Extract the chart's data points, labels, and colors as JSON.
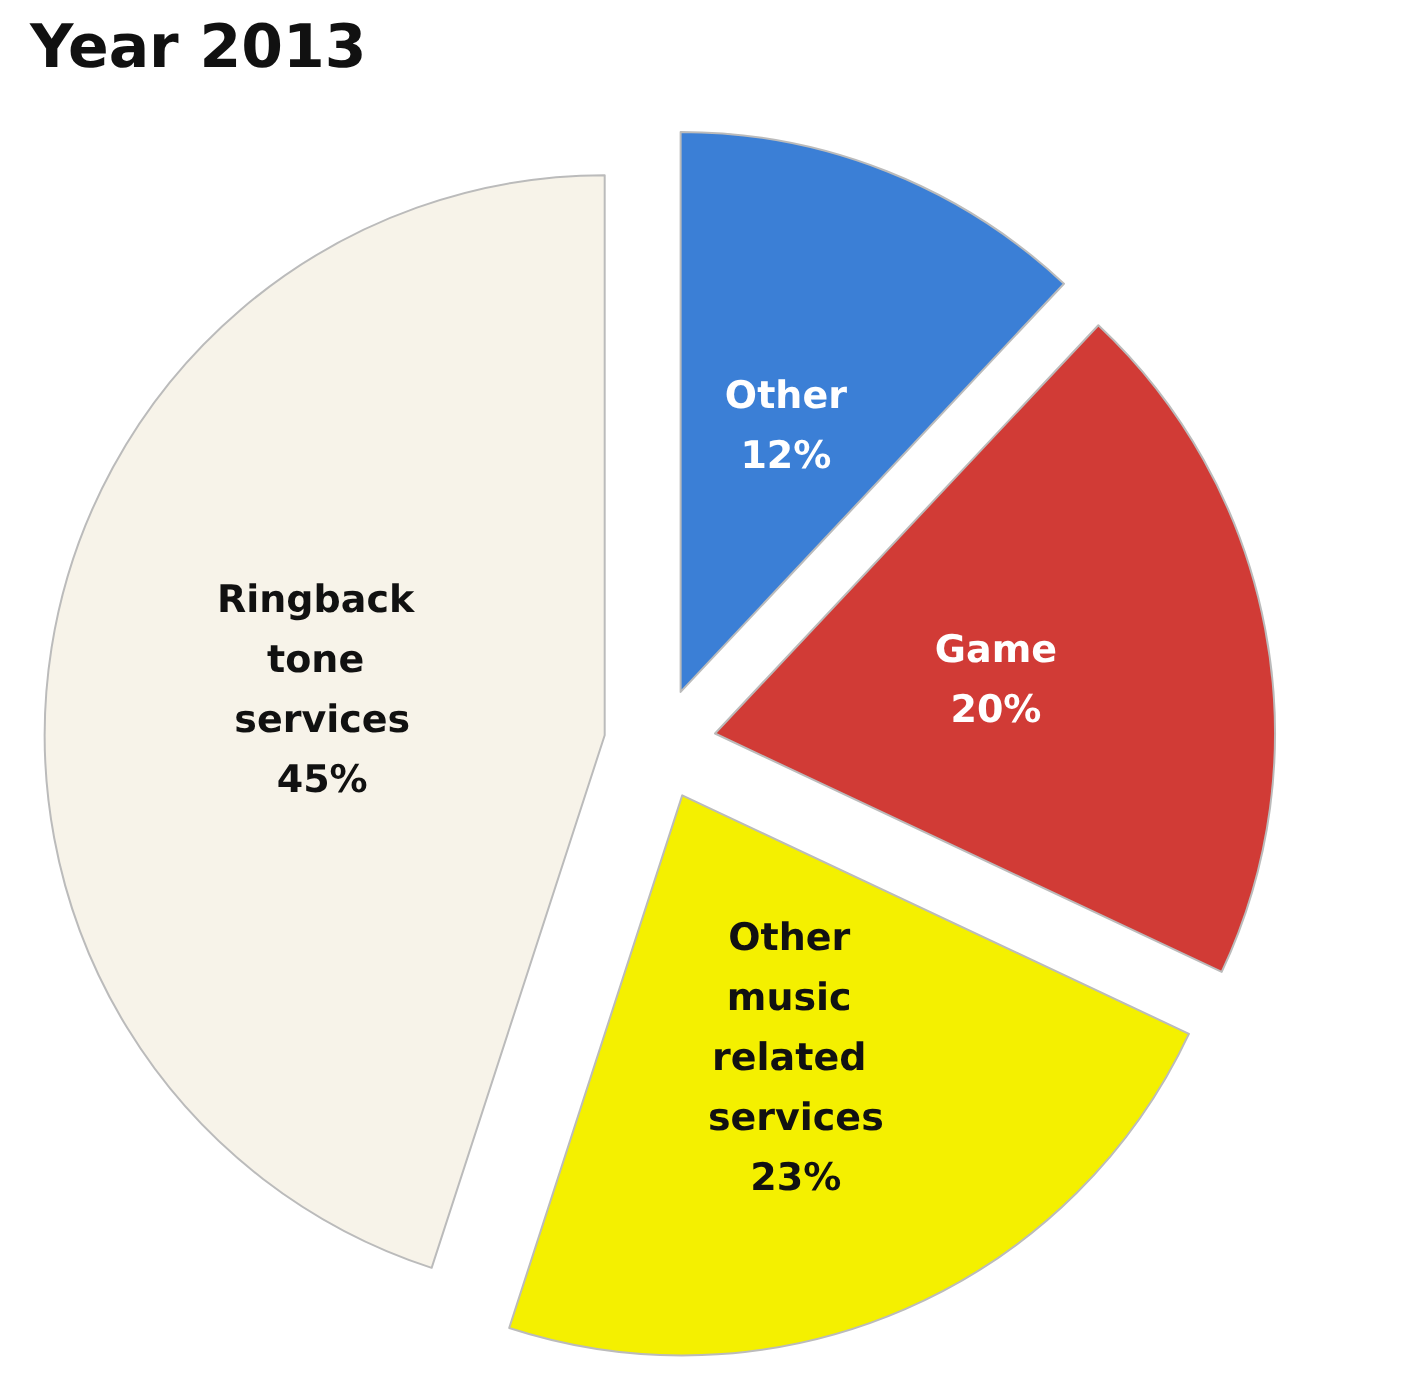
{
  "chart_data": {
    "type": "pie",
    "title": "Year 2013",
    "categories": [
      "Other",
      "Game",
      "Other music related services",
      "Ringback tone services"
    ],
    "values": [
      12,
      20,
      23,
      45
    ],
    "colors": [
      "#3b7fd6",
      "#d13b36",
      "#f4f000",
      "#f7f3e9"
    ],
    "value_labels": [
      "12%",
      "20%",
      "23%",
      "45%"
    ]
  }
}
